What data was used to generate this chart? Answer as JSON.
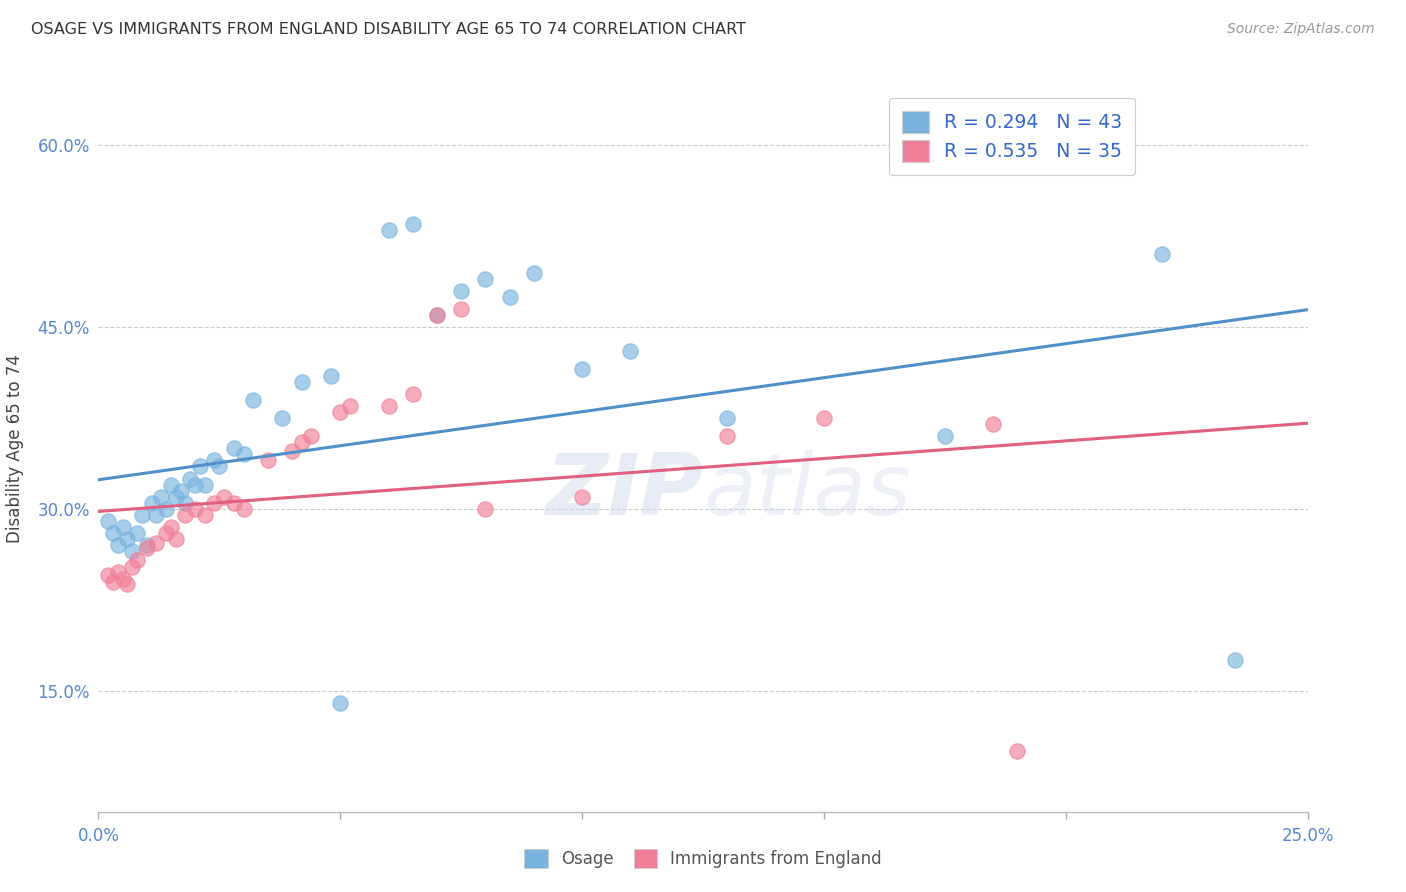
{
  "title": "OSAGE VS IMMIGRANTS FROM ENGLAND DISABILITY AGE 65 TO 74 CORRELATION CHART",
  "source": "Source: ZipAtlas.com",
  "ylabel": "Disability Age 65 to 74",
  "ytick_labels": [
    "15.0%",
    "30.0%",
    "45.0%",
    "60.0%"
  ],
  "ytick_values": [
    0.15,
    0.3,
    0.45,
    0.6
  ],
  "xlim": [
    0.0,
    0.25
  ],
  "ylim": [
    0.05,
    0.65
  ],
  "legend_entry_blue": "R = 0.294   N = 43",
  "legend_entry_pink": "R = 0.535   N = 35",
  "watermark": "ZIPatlas",
  "osage_color": "#7ab4de",
  "england_color": "#f08098",
  "osage_line_color": "#5090c8",
  "england_line_color": "#e06080",
  "osage_scatter": [
    [
      0.002,
      0.29
    ],
    [
      0.003,
      0.28
    ],
    [
      0.004,
      0.27
    ],
    [
      0.005,
      0.285
    ],
    [
      0.006,
      0.275
    ],
    [
      0.007,
      0.265
    ],
    [
      0.008,
      0.28
    ],
    [
      0.009,
      0.295
    ],
    [
      0.01,
      0.27
    ],
    [
      0.011,
      0.305
    ],
    [
      0.012,
      0.295
    ],
    [
      0.013,
      0.31
    ],
    [
      0.014,
      0.3
    ],
    [
      0.015,
      0.32
    ],
    [
      0.016,
      0.31
    ],
    [
      0.017,
      0.315
    ],
    [
      0.018,
      0.305
    ],
    [
      0.019,
      0.325
    ],
    [
      0.02,
      0.32
    ],
    [
      0.021,
      0.335
    ],
    [
      0.022,
      0.32
    ],
    [
      0.024,
      0.34
    ],
    [
      0.025,
      0.335
    ],
    [
      0.028,
      0.35
    ],
    [
      0.03,
      0.345
    ],
    [
      0.032,
      0.39
    ],
    [
      0.038,
      0.375
    ],
    [
      0.042,
      0.405
    ],
    [
      0.048,
      0.41
    ],
    [
      0.06,
      0.53
    ],
    [
      0.065,
      0.535
    ],
    [
      0.07,
      0.46
    ],
    [
      0.075,
      0.48
    ],
    [
      0.08,
      0.49
    ],
    [
      0.085,
      0.475
    ],
    [
      0.09,
      0.495
    ],
    [
      0.1,
      0.415
    ],
    [
      0.11,
      0.43
    ],
    [
      0.13,
      0.375
    ],
    [
      0.05,
      0.14
    ],
    [
      0.175,
      0.36
    ],
    [
      0.22,
      0.51
    ],
    [
      0.235,
      0.175
    ]
  ],
  "england_scatter": [
    [
      0.002,
      0.245
    ],
    [
      0.003,
      0.24
    ],
    [
      0.004,
      0.248
    ],
    [
      0.005,
      0.242
    ],
    [
      0.006,
      0.238
    ],
    [
      0.007,
      0.252
    ],
    [
      0.008,
      0.258
    ],
    [
      0.01,
      0.268
    ],
    [
      0.012,
      0.272
    ],
    [
      0.014,
      0.28
    ],
    [
      0.015,
      0.285
    ],
    [
      0.016,
      0.275
    ],
    [
      0.018,
      0.295
    ],
    [
      0.02,
      0.3
    ],
    [
      0.022,
      0.295
    ],
    [
      0.024,
      0.305
    ],
    [
      0.026,
      0.31
    ],
    [
      0.028,
      0.305
    ],
    [
      0.03,
      0.3
    ],
    [
      0.035,
      0.34
    ],
    [
      0.04,
      0.348
    ],
    [
      0.042,
      0.355
    ],
    [
      0.044,
      0.36
    ],
    [
      0.05,
      0.38
    ],
    [
      0.052,
      0.385
    ],
    [
      0.06,
      0.385
    ],
    [
      0.065,
      0.395
    ],
    [
      0.07,
      0.46
    ],
    [
      0.075,
      0.465
    ],
    [
      0.08,
      0.3
    ],
    [
      0.1,
      0.31
    ],
    [
      0.13,
      0.36
    ],
    [
      0.15,
      0.375
    ],
    [
      0.185,
      0.37
    ],
    [
      0.19,
      0.1
    ]
  ],
  "background_color": "#ffffff",
  "grid_color": "#cccccc",
  "title_color": "#333333",
  "axis_label_color": "#444444",
  "tick_label_color": "#5588cc",
  "legend_r_color": "#3366cc"
}
